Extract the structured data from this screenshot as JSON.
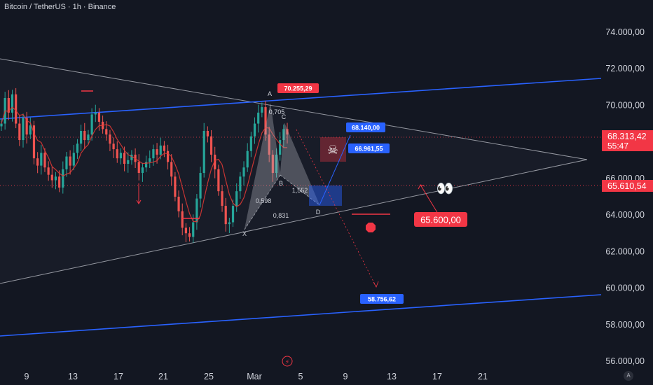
{
  "header": {
    "symbol_label": "Bitcoin / TetherUS · 1h · Binance"
  },
  "colors": {
    "background": "#131722",
    "candle_up": "#26a69a",
    "candle_down": "#ef5350",
    "ma_line": "#e53935",
    "trend_blue": "#2962ff",
    "triangle_line": "#9598a1",
    "label_red": "#f23645",
    "label_blue": "#2962ff",
    "pattern_fill": "#787b86"
  },
  "chart_data": {
    "type": "candlestick",
    "title": "",
    "xlabel": "",
    "ylabel": "",
    "ylim": [
      55500,
      75500
    ],
    "y_ticks": [
      "74.000,00",
      "72.000,00",
      "70.000,00",
      "68.000,00",
      "66.000,00",
      "64.000,00",
      "62.000,00",
      "60.000,00",
      "58.000,00",
      "56.000,00"
    ],
    "y_tick_values": [
      74000,
      72000,
      70000,
      68000,
      66000,
      64000,
      62000,
      60000,
      58000,
      56000
    ],
    "x_ticks": [
      "9",
      "13",
      "17",
      "21",
      "25",
      "Mar",
      "5",
      "9",
      "13",
      "17",
      "21"
    ],
    "price_tags": [
      {
        "label": "68.313,42",
        "sub": "55:47",
        "value": 68313.42,
        "color": "#f23645"
      },
      {
        "label": "65.610,54",
        "value": 65610.54,
        "color": "#f23645"
      }
    ],
    "annotations": {
      "point_A": {
        "letter": "A",
        "value_label": "70.255,29"
      },
      "target_1": "68.140,00",
      "target_2": "66.961,55",
      "target_low": "58.756,62",
      "support_label": "65.600,00",
      "pattern_letters": [
        "X",
        "A",
        "B",
        "C",
        "D"
      ],
      "ratios": [
        "0,705",
        "0,598",
        "1,552",
        "0,831"
      ],
      "emoji": "👀"
    },
    "series": [
      {
        "name": "",
        "values": [
          69000,
          70400,
          69600,
          70600,
          69000,
          68100,
          69300,
          68400,
          68900,
          67100,
          66700,
          67400,
          66600,
          66200,
          65900,
          66100,
          65500,
          66500,
          67200,
          66700,
          67400,
          67900,
          68600,
          68100,
          68400,
          69500,
          69600,
          69100,
          68700,
          68400,
          67900,
          67600,
          67100,
          67400,
          66800,
          67000,
          67300,
          66900,
          66300,
          66600,
          66900,
          67100,
          67600,
          67300,
          67800,
          67500,
          66900,
          66100,
          65000,
          64200,
          63300,
          63000,
          62800,
          63600,
          64900,
          66300,
          68600,
          68300,
          67300,
          66500,
          65300,
          64500,
          63500,
          63600,
          64500,
          65300,
          66100,
          66600,
          67500,
          68300,
          69000,
          69600,
          69900,
          68400,
          67300,
          66300,
          67300,
          68100,
          68700,
          68400
        ]
      }
    ]
  },
  "footer": {
    "badge": "A",
    "lightning": "⚡"
  }
}
